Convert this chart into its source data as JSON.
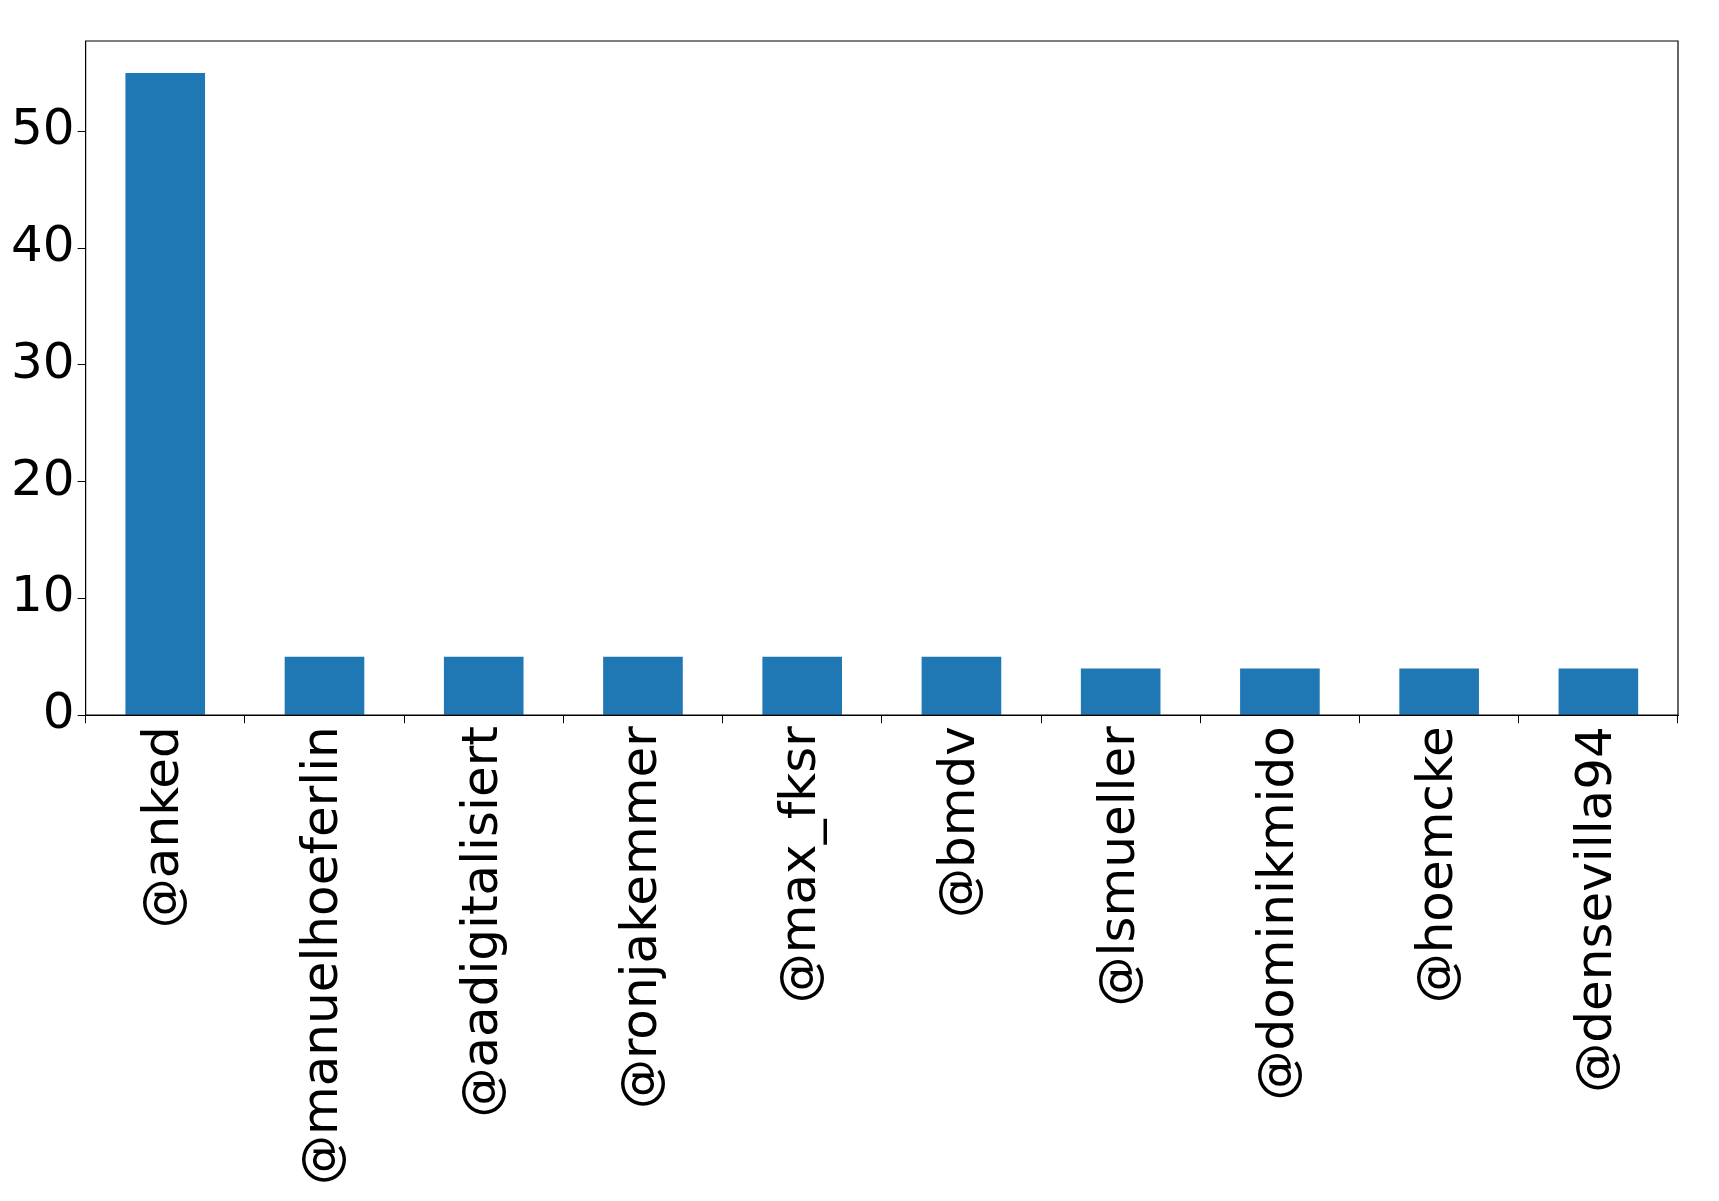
{
  "chart_data": {
    "type": "bar",
    "categories": [
      "@anked",
      "@manuelhoeferlin",
      "@aadigitalisiert",
      "@ronjakemmer",
      "@max_fksr",
      "@bmdv",
      "@lsmueller",
      "@dominikmido",
      "@hoemcke",
      "@densevilla94"
    ],
    "values": [
      55,
      5,
      5,
      5,
      5,
      5,
      4,
      4,
      4,
      4
    ],
    "color": "#1f77b4",
    "ylim": [
      0,
      57.75
    ],
    "yticks": [
      0,
      10,
      20,
      30,
      40,
      50
    ],
    "grid": false,
    "legend": false
  }
}
